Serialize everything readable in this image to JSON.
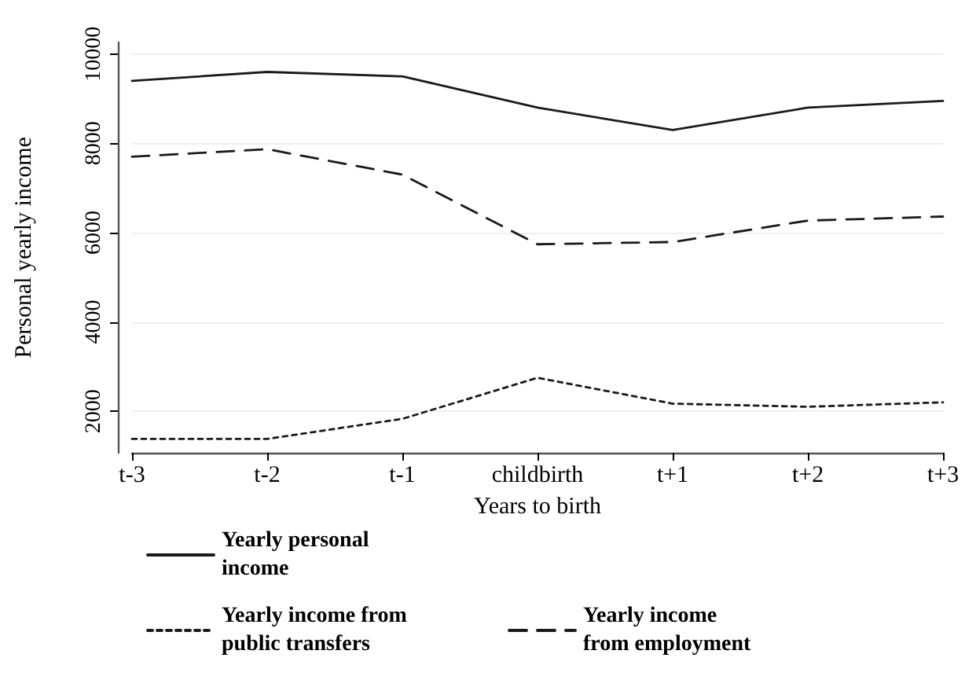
{
  "chart_data": {
    "type": "line",
    "xlabel": "Years to birth",
    "ylabel": "Personal yearly income",
    "categories": [
      "t-3",
      "t-2",
      "t-1",
      "childbirth",
      "t+1",
      "t+2",
      "t+3"
    ],
    "series": [
      {
        "name": "Yearly personal income",
        "color": "#1a1a1a",
        "line_style": "solid",
        "values": [
          9400,
          9600,
          9500,
          8800,
          8300,
          8800,
          8950
        ]
      },
      {
        "name": "Yearly income from public transfers",
        "color": "#1a1a1a",
        "line_style": "dotted",
        "values": [
          1380,
          1380,
          1830,
          2750,
          2170,
          2100,
          2200
        ]
      },
      {
        "name": "Yearly income from employment",
        "color": "#1a1a1a",
        "line_style": "dashed",
        "values": [
          7700,
          7870,
          7300,
          5740,
          5790,
          6270,
          6360
        ]
      }
    ],
    "ylim": [
      1070,
      10260
    ],
    "yticks": [
      2000,
      4000,
      6000,
      8000,
      10000
    ],
    "grid": "y",
    "legend": "bottom",
    "marker": "none"
  }
}
